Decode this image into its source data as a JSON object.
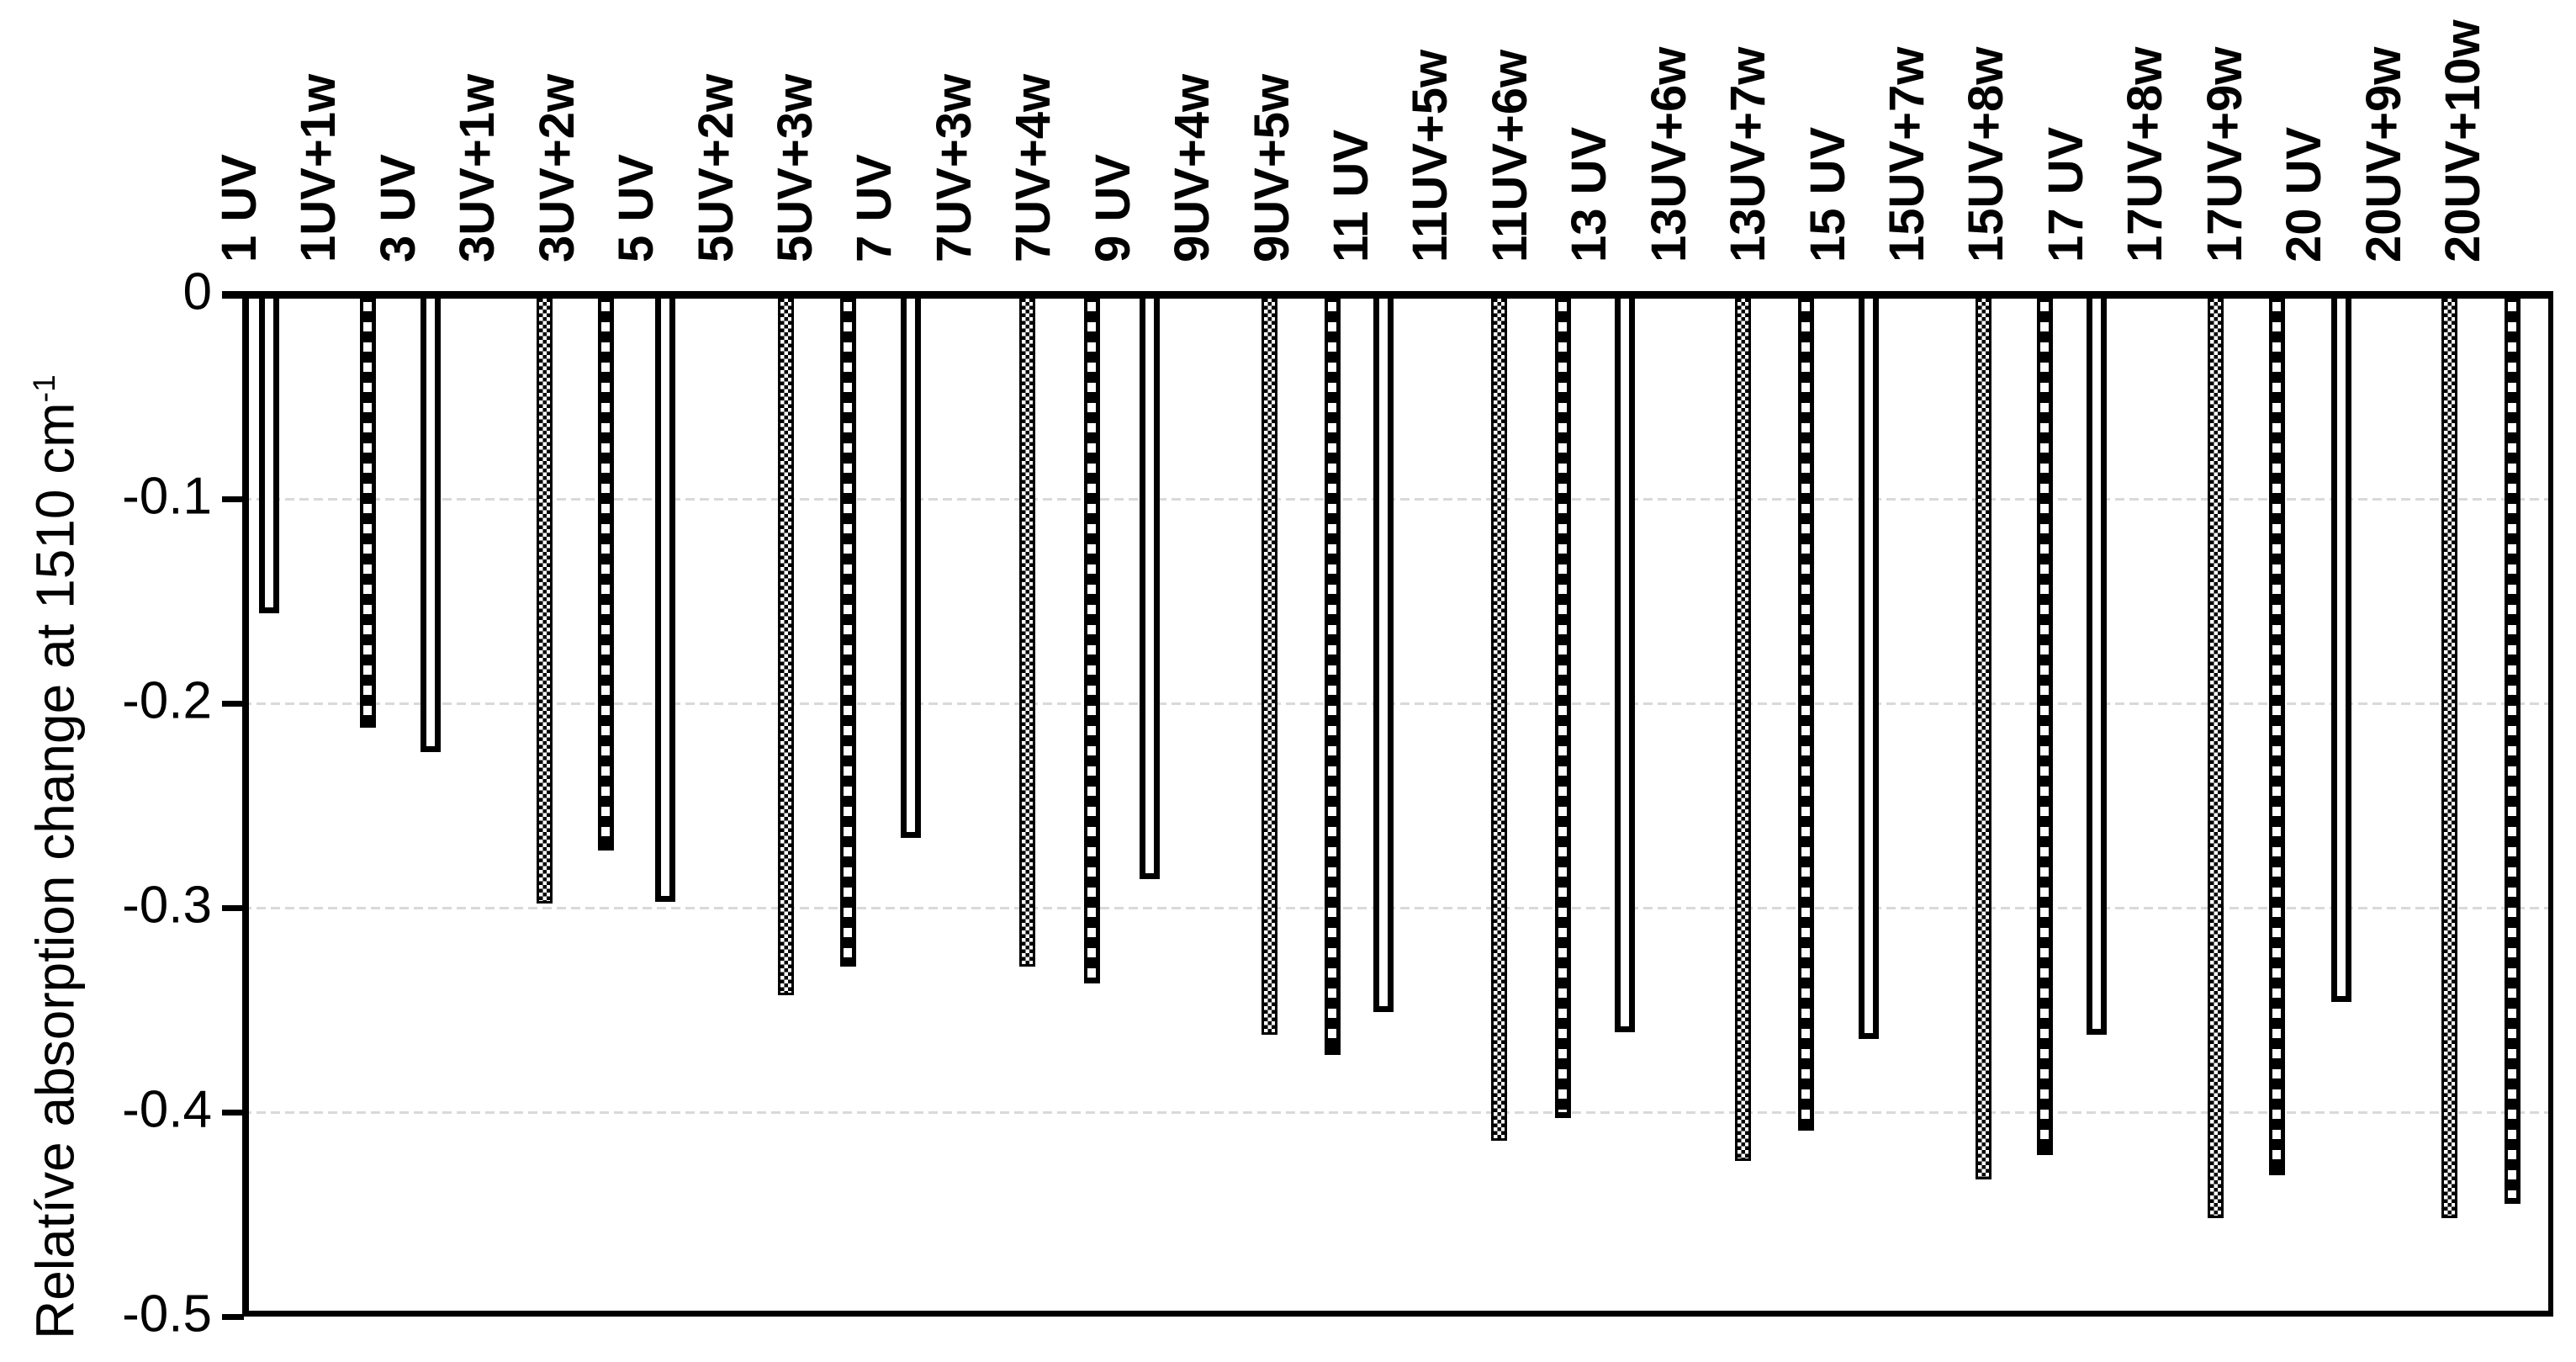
{
  "chart_data": {
    "type": "bar",
    "title": "",
    "ylabel": {
      "text": "Relatíve absorption change at 1510 cm",
      "superscript": "-1"
    },
    "xlabel": "",
    "ylim": [
      -0.5,
      0
    ],
    "grid": "horizontal",
    "gridline_values": [
      -0.1,
      -0.2,
      -0.3,
      -0.4
    ],
    "legend_position": "none",
    "yticks": {
      "labels": [
        "0",
        "-0.1",
        "-0.2",
        "-0.3",
        "-0.4",
        "-0.5"
      ],
      "values": [
        0,
        -0.1,
        -0.2,
        -0.3,
        -0.4,
        -0.5
      ]
    },
    "bars": [
      {
        "label": "1 UV",
        "value": -0.156,
        "pattern": "plain"
      },
      {
        "label": "1UV+1w",
        "value": -0.212,
        "pattern": "dashed"
      },
      {
        "label": "3 UV",
        "value": -0.224,
        "pattern": "plain"
      },
      {
        "label": "3UV+1w",
        "value": -0.298,
        "pattern": "checker"
      },
      {
        "label": "3UV+2w",
        "value": -0.272,
        "pattern": "dashed"
      },
      {
        "label": "5 UV",
        "value": -0.297,
        "pattern": "plain"
      },
      {
        "label": "5UV+2w",
        "value": -0.343,
        "pattern": "checker"
      },
      {
        "label": "5UV+3w",
        "value": -0.329,
        "pattern": "dashed"
      },
      {
        "label": "7 UV",
        "value": -0.266,
        "pattern": "plain"
      },
      {
        "label": "7UV+3w",
        "value": -0.329,
        "pattern": "checker"
      },
      {
        "label": "7UV+4w",
        "value": -0.337,
        "pattern": "dashed"
      },
      {
        "label": "9 UV",
        "value": -0.286,
        "pattern": "plain"
      },
      {
        "label": "9UV+4w",
        "value": -0.362,
        "pattern": "checker"
      },
      {
        "label": "9UV+5w",
        "value": -0.372,
        "pattern": "dashed"
      },
      {
        "label": "11 UV",
        "value": -0.351,
        "pattern": "plain"
      },
      {
        "label": "11UV+5w",
        "value": -0.414,
        "pattern": "checker"
      },
      {
        "label": "11UV+6w",
        "value": -0.403,
        "pattern": "dashed"
      },
      {
        "label": "13 UV",
        "value": -0.361,
        "pattern": "plain"
      },
      {
        "label": "13UV+6w",
        "value": -0.424,
        "pattern": "checker"
      },
      {
        "label": "13UV+7w",
        "value": -0.409,
        "pattern": "dashed"
      },
      {
        "label": "15 UV",
        "value": -0.364,
        "pattern": "plain"
      },
      {
        "label": "15UV+7w",
        "value": -0.433,
        "pattern": "checker"
      },
      {
        "label": "15UV+8w",
        "value": -0.421,
        "pattern": "dashed"
      },
      {
        "label": "17 UV",
        "value": -0.362,
        "pattern": "plain"
      },
      {
        "label": "17UV+8w",
        "value": -0.452,
        "pattern": "checker"
      },
      {
        "label": "17UV+9w",
        "value": -0.431,
        "pattern": "dashed"
      },
      {
        "label": "20 UV",
        "value": -0.346,
        "pattern": "plain"
      },
      {
        "label": "20UV+9w",
        "value": -0.452,
        "pattern": "checker"
      },
      {
        "label": "20UV+10w",
        "value": -0.445,
        "pattern": "dashed"
      }
    ]
  },
  "colors": {
    "background": "#ffffff",
    "axis": "#000000",
    "gridline": "#d9d9d9",
    "bar_outline": "#000000",
    "bar_plain_fill": "#ffffff",
    "bar_dashed_fill": "#000000",
    "text": "#000000"
  }
}
